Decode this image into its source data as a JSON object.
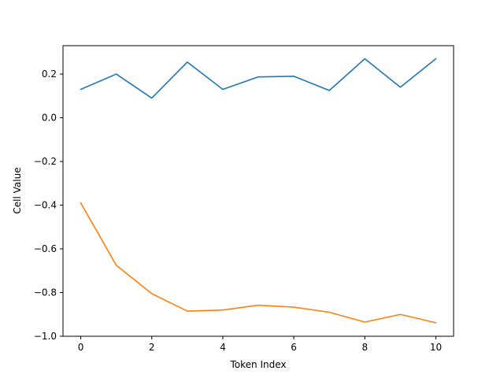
{
  "chart_data": {
    "type": "line",
    "title": "",
    "xlabel": "Token Index",
    "ylabel": "Cell Value",
    "xlim": [
      -0.5,
      10.5
    ],
    "ylim": [
      -1.0,
      0.33
    ],
    "xticks": [
      0,
      2,
      4,
      6,
      8,
      10
    ],
    "xtick_labels": [
      "0",
      "2",
      "4",
      "6",
      "8",
      "10"
    ],
    "yticks": [
      -1.0,
      -0.8,
      -0.6,
      -0.4,
      -0.2,
      0.0,
      0.2
    ],
    "ytick_labels": [
      "−1.0",
      "−0.8",
      "−0.6",
      "−0.4",
      "−0.2",
      "0.0",
      "0.2"
    ],
    "grid": false,
    "x": [
      0,
      1,
      2,
      3,
      4,
      5,
      6,
      7,
      8,
      9,
      10
    ],
    "series": [
      {
        "color": "#1f77b4",
        "values": [
          0.13,
          0.2,
          0.09,
          0.255,
          0.13,
          0.187,
          0.19,
          0.125,
          0.27,
          0.14,
          0.27
        ]
      },
      {
        "color": "#ff7f0e",
        "values": [
          -0.39,
          -0.675,
          -0.805,
          -0.885,
          -0.88,
          -0.858,
          -0.867,
          -0.89,
          -0.935,
          -0.9,
          -0.938
        ]
      }
    ]
  }
}
